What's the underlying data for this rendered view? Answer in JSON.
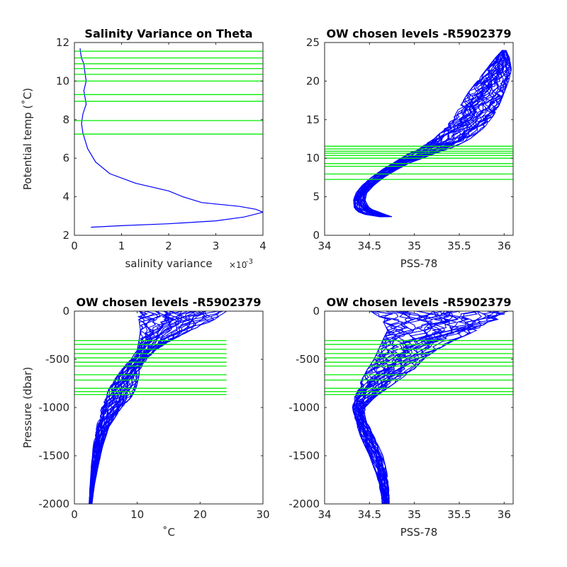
{
  "chart_data": [
    {
      "id": "p1",
      "type": "line",
      "title": "Salinity Variance on Theta",
      "xlabel": "salinity variance",
      "x_multiplier_label": "×10",
      "x_multiplier_exponent": "-3",
      "ylabel": "Potential temp (˚C)",
      "xlim": [
        0,
        4
      ],
      "ylim": [
        2,
        12
      ],
      "xticks": [
        0,
        1,
        2,
        3,
        4
      ],
      "xtick_labels": [
        "0",
        "1",
        "2",
        "3",
        "4"
      ],
      "yticks": [
        2,
        4,
        6,
        8,
        10,
        12
      ],
      "ytick_labels": [
        "2",
        "4",
        "6",
        "8",
        "10",
        "12"
      ],
      "series_color": "#0000ff",
      "level_color": "#00ee00",
      "levels": [
        7.25,
        7.95,
        8.95,
        9.3,
        10.0,
        10.35,
        10.65,
        10.9,
        11.2,
        11.55
      ],
      "series": [
        {
          "x": [
            0.35,
            1.0,
            2.0,
            3.0,
            3.6,
            4.0,
            3.85,
            3.5,
            2.7,
            2.3,
            2.0,
            1.3,
            0.75,
            0.45,
            0.28,
            0.18,
            0.15,
            0.18,
            0.25,
            0.2,
            0.25,
            0.22,
            0.2,
            0.15,
            0.13,
            0.12
          ],
          "y": [
            2.42,
            2.5,
            2.6,
            2.75,
            2.95,
            3.2,
            3.35,
            3.5,
            3.7,
            4.0,
            4.3,
            4.7,
            5.2,
            5.8,
            6.5,
            7.3,
            7.8,
            8.3,
            8.8,
            9.5,
            10.0,
            10.5,
            10.9,
            11.2,
            11.5,
            11.7
          ]
        }
      ]
    },
    {
      "id": "p2",
      "type": "line",
      "title": "OW chosen levels -R5902379",
      "xlabel": "PSS-78",
      "ylabel": "",
      "xlim": [
        34,
        36.1
      ],
      "ylim": [
        0,
        25
      ],
      "xticks": [
        34,
        34.5,
        35,
        35.5,
        36
      ],
      "xtick_labels": [
        "34",
        "34.5",
        "35",
        "35.5",
        "36"
      ],
      "yticks": [
        0,
        5,
        10,
        15,
        20,
        25
      ],
      "ytick_labels": [
        "0",
        "5",
        "10",
        "15",
        "20",
        "25"
      ],
      "series_color": "#0000ff",
      "level_color": "#00ee00",
      "levels": [
        7.25,
        7.95,
        8.95,
        9.3,
        10.0,
        10.35,
        10.65,
        10.9,
        11.2,
        11.55
      ],
      "envelope": {
        "y": [
          2.4,
          2.8,
          3.5,
          4.5,
          5.5,
          6.5,
          7.5,
          8.5,
          9.5,
          10.5,
          11.5,
          12.5,
          14.0,
          15.5,
          17.0,
          18.5,
          20.0,
          21.5,
          23.0,
          24.0
        ],
        "left": [
          34.62,
          34.4,
          34.33,
          34.32,
          34.35,
          34.42,
          34.52,
          34.64,
          34.78,
          34.92,
          35.08,
          35.22,
          35.35,
          35.45,
          35.52,
          35.6,
          35.7,
          35.8,
          35.9,
          35.98
        ],
        "right": [
          34.75,
          34.65,
          34.5,
          34.45,
          34.47,
          34.55,
          34.66,
          34.8,
          34.98,
          35.2,
          35.45,
          35.62,
          35.78,
          35.88,
          35.95,
          36.0,
          36.05,
          36.08,
          36.06,
          36.02
        ]
      }
    },
    {
      "id": "p3",
      "type": "line",
      "title": "OW chosen levels -R5902379",
      "xlabel": "˚C",
      "ylabel": "Pressure (dbar)",
      "xlim": [
        0,
        30
      ],
      "ylim": [
        -2000,
        0
      ],
      "xticks": [
        0,
        10,
        20,
        30
      ],
      "xtick_labels": [
        "0",
        "10",
        "20",
        "30"
      ],
      "yticks": [
        -2000,
        -1500,
        -1000,
        -500,
        0
      ],
      "ytick_labels": [
        "-2000",
        "-1500",
        "-1000",
        "-500",
        "0"
      ],
      "series_color": "#0000ff",
      "level_color": "#00ee00",
      "level_xmax": 24.2,
      "levels": [
        -305,
        -345,
        -395,
        -440,
        -485,
        -530,
        -570,
        -660,
        -715,
        -800,
        -835,
        -865
      ],
      "envelope": {
        "y": [
          0,
          -100,
          -200,
          -300,
          -400,
          -500,
          -600,
          -700,
          -800,
          -900,
          -1000,
          -1200,
          -1400,
          -1600,
          -1800,
          -2000
        ],
        "left": [
          10.0,
          10.3,
          10.5,
          10.3,
          10.0,
          9.0,
          7.5,
          6.5,
          5.5,
          5.0,
          4.3,
          3.5,
          3.0,
          2.7,
          2.5,
          2.3
        ],
        "right": [
          24.2,
          22.0,
          18.5,
          15.5,
          13.0,
          11.5,
          10.5,
          10.2,
          9.8,
          9.0,
          7.5,
          5.5,
          4.5,
          3.8,
          3.2,
          2.8
        ]
      }
    },
    {
      "id": "p4",
      "type": "line",
      "title": "OW chosen levels -R5902379",
      "xlabel": "PSS-78",
      "ylabel": "",
      "xlim": [
        34,
        36.1
      ],
      "ylim": [
        -2000,
        0
      ],
      "xticks": [
        34,
        34.5,
        35,
        35.5,
        36
      ],
      "xtick_labels": [
        "34",
        "34.5",
        "35",
        "35.5",
        "36"
      ],
      "yticks": [
        -2000,
        -1500,
        -1000,
        -500,
        0
      ],
      "ytick_labels": [
        "-2000",
        "-1500",
        "-1000",
        "-500",
        "0"
      ],
      "series_color": "#0000ff",
      "level_color": "#00ee00",
      "levels": [
        -305,
        -345,
        -395,
        -440,
        -485,
        -530,
        -570,
        -660,
        -715,
        -800,
        -835,
        -865
      ],
      "envelope": {
        "y": [
          0,
          -50,
          -100,
          -200,
          -300,
          -400,
          -500,
          -600,
          -700,
          -800,
          -900,
          -1000,
          -1100,
          -1300,
          -1500,
          -1700,
          -1900,
          -2000
        ],
        "left": [
          34.5,
          34.6,
          34.65,
          34.7,
          34.65,
          34.6,
          34.55,
          34.48,
          34.42,
          34.37,
          34.33,
          34.31,
          34.33,
          34.4,
          34.5,
          34.58,
          34.63,
          34.64
        ],
        "right": [
          36.05,
          36.0,
          35.9,
          35.7,
          35.45,
          35.25,
          35.1,
          35.0,
          34.85,
          34.7,
          34.55,
          34.45,
          34.45,
          34.55,
          34.65,
          34.7,
          34.72,
          34.72
        ]
      }
    }
  ]
}
